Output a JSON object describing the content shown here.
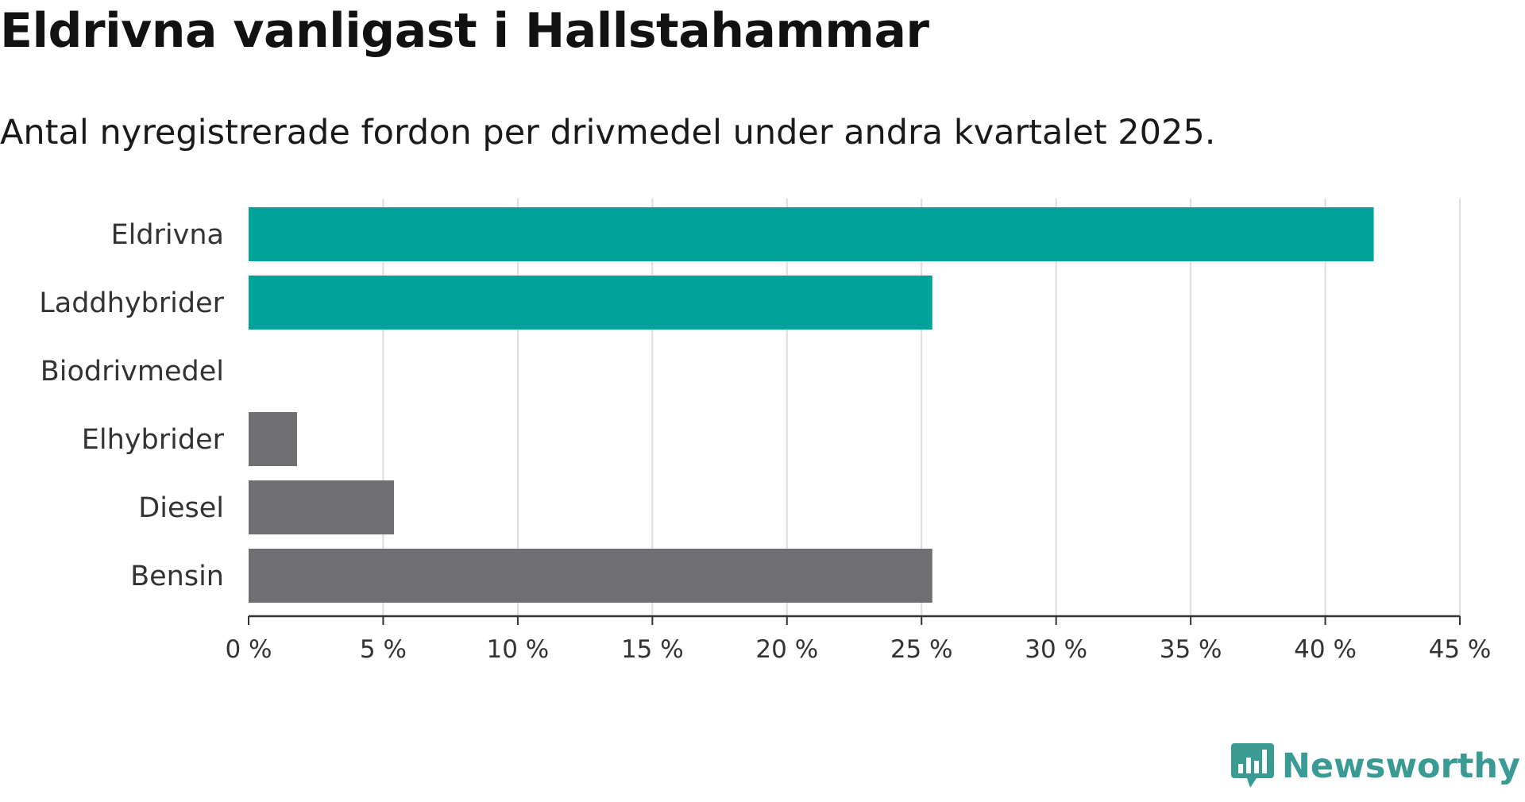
{
  "header": {
    "title": "Eldrivna vanligast i Hallstahammar",
    "subtitle": "Antal nyregistrerade fordon per drivmedel under andra kvartalet 2025."
  },
  "chart_data": {
    "type": "bar",
    "orientation": "horizontal",
    "categories": [
      "Eldrivna",
      "Laddhybrider",
      "Biodrivmedel",
      "Elhybrider",
      "Diesel",
      "Bensin"
    ],
    "values": [
      41.8,
      25.4,
      0,
      1.8,
      5.4,
      25.4
    ],
    "bar_colors": [
      "#00a39a",
      "#00a39a",
      "#00a39a",
      "#6e6e73",
      "#6e6e73",
      "#6e6e73"
    ],
    "xlim": [
      0,
      45
    ],
    "x_ticks": [
      0,
      5,
      10,
      15,
      20,
      25,
      30,
      35,
      40,
      45
    ],
    "tick_suffix": " %",
    "grid": true
  },
  "brand": {
    "name": "Newsworthy",
    "color": "#3a9a94",
    "icon": "bar-chart-speech-bubble-icon"
  }
}
